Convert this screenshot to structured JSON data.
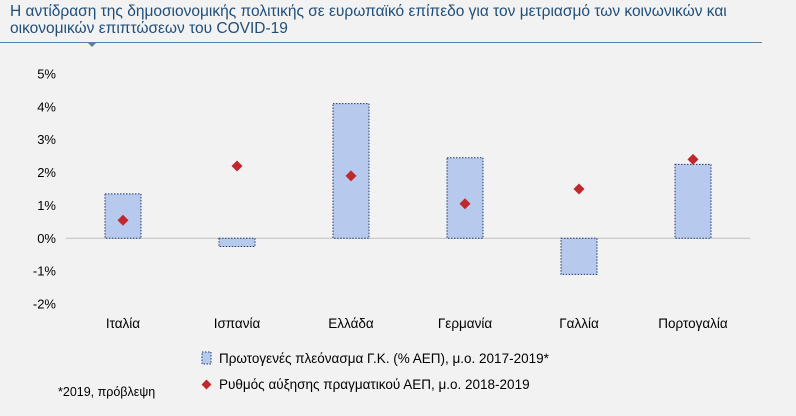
{
  "title": "Η αντίδραση της δημοσιονομικής πολιτικής σε ευρωπαϊκό επίπεδο για τον μετριασμό των κοινωνικών και οικονομικών επιπτώσεων του COVID-19",
  "footnote": "*2019, πρόβλεψη",
  "colors": {
    "bar_fill": "#b7c9ec",
    "bar_border": "#1f3a6e",
    "marker": "#c0282d",
    "title": "#1f4e79",
    "background": "#f2f2f2"
  },
  "chart_data": {
    "type": "bar",
    "categories": [
      "Ιταλία",
      "Ισπανία",
      "Ελλάδα",
      "Γερμανία",
      "Γαλλία",
      "Πορτογαλία"
    ],
    "series": [
      {
        "name": "Πρωτογενές πλεόνασμα Γ.Κ. (% ΑΕΠ), μ.ο. 2017-2019*",
        "type": "bar",
        "values": [
          1.35,
          -0.25,
          4.1,
          2.45,
          -1.1,
          2.25
        ]
      },
      {
        "name": "Ρυθμός αύξησης πραγματικού ΑΕΠ, μ.ο. 2018-2019",
        "type": "scatter",
        "marker": "diamond",
        "values": [
          0.55,
          2.2,
          1.9,
          1.05,
          1.5,
          2.4
        ]
      }
    ],
    "y_ticks": [
      "5%",
      "4%",
      "3%",
      "2%",
      "1%",
      "0%",
      "-1%",
      "-2%"
    ],
    "ylim": [
      -2,
      5
    ],
    "grid": false,
    "legend_position": "bottom"
  }
}
